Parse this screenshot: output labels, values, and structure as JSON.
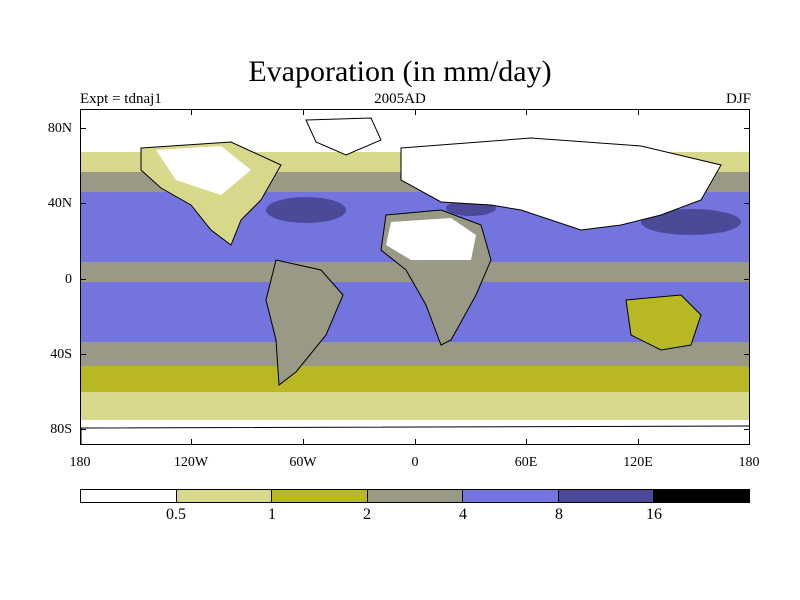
{
  "title": "Evaporation (in mm/day)",
  "subtitle_left": "Expt = tdnaj1",
  "subtitle_center": "2005AD",
  "subtitle_right": "DJF",
  "y_tick_labels": [
    "80N",
    "40N",
    "0",
    "40S",
    "80S"
  ],
  "x_tick_labels": [
    "180",
    "120W",
    "60W",
    "0",
    "60E",
    "120E",
    "180"
  ],
  "legend": {
    "colors": [
      "#ffffff",
      "#d8d88a",
      "#b8b824",
      "#999986",
      "#7474df",
      "#4a4a98",
      "#000000"
    ],
    "breaks": [
      "0.5",
      "1",
      "2",
      "4",
      "8",
      "16"
    ]
  },
  "colors": {
    "ocean_mid": "#7474df",
    "ocean_high": "#4a4a98",
    "band_grey": "#999986",
    "band_olive": "#b8b824",
    "band_light": "#d8d88a",
    "land_dry": "#ffffff"
  }
}
